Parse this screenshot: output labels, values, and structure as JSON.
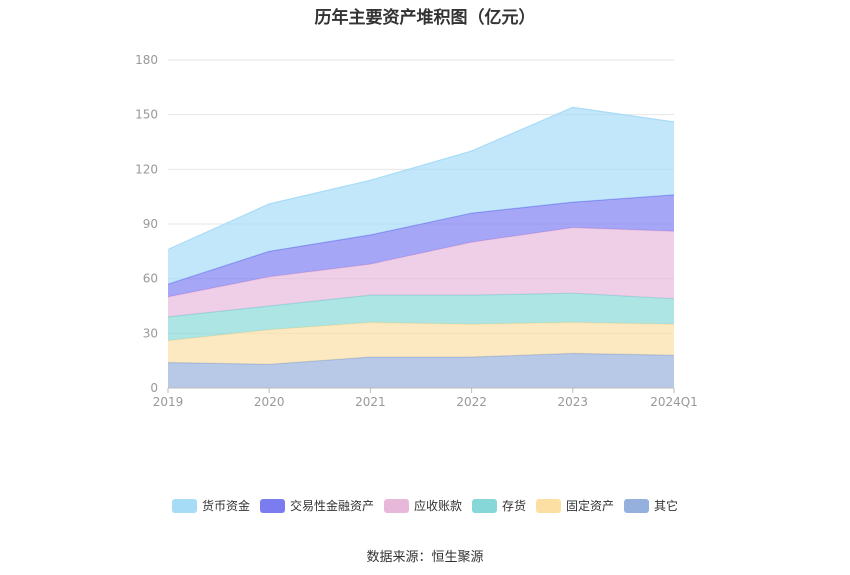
{
  "chart_data": {
    "type": "area",
    "stacked": true,
    "title": "历年主要资产堆积图（亿元）",
    "categories": [
      "2019",
      "2020",
      "2021",
      "2022",
      "2023",
      "2024Q1"
    ],
    "ylim": [
      0,
      180
    ],
    "yticks": [
      "0",
      "30",
      "60",
      "90",
      "120",
      "150",
      "180"
    ],
    "grid": true,
    "legend_position": "bottom",
    "stack_order_bottom_to_top": [
      "其它",
      "固定资产",
      "存货",
      "应收账款",
      "交易性金融资产",
      "货币资金"
    ],
    "series": [
      {
        "name": "货币资金",
        "color": "#a7dcf7",
        "values": [
          19,
          26,
          30,
          34,
          52,
          40
        ]
      },
      {
        "name": "交易性金融资产",
        "color": "#7b7cf0",
        "values": [
          7,
          14,
          16,
          16,
          14,
          20
        ]
      },
      {
        "name": "应收账款",
        "color": "#e8b8db",
        "values": [
          11,
          16,
          17,
          29,
          36,
          37
        ]
      },
      {
        "name": "存货",
        "color": "#86d8d8",
        "values": [
          13,
          13,
          15,
          16,
          16,
          14
        ]
      },
      {
        "name": "固定资产",
        "color": "#fcdfa3",
        "values": [
          12,
          19,
          19,
          18,
          17,
          17
        ]
      },
      {
        "name": "其它",
        "color": "#95b0dc",
        "values": [
          14,
          13,
          17,
          17,
          19,
          18
        ]
      }
    ]
  },
  "source_note": "数据来源：恒生聚源"
}
